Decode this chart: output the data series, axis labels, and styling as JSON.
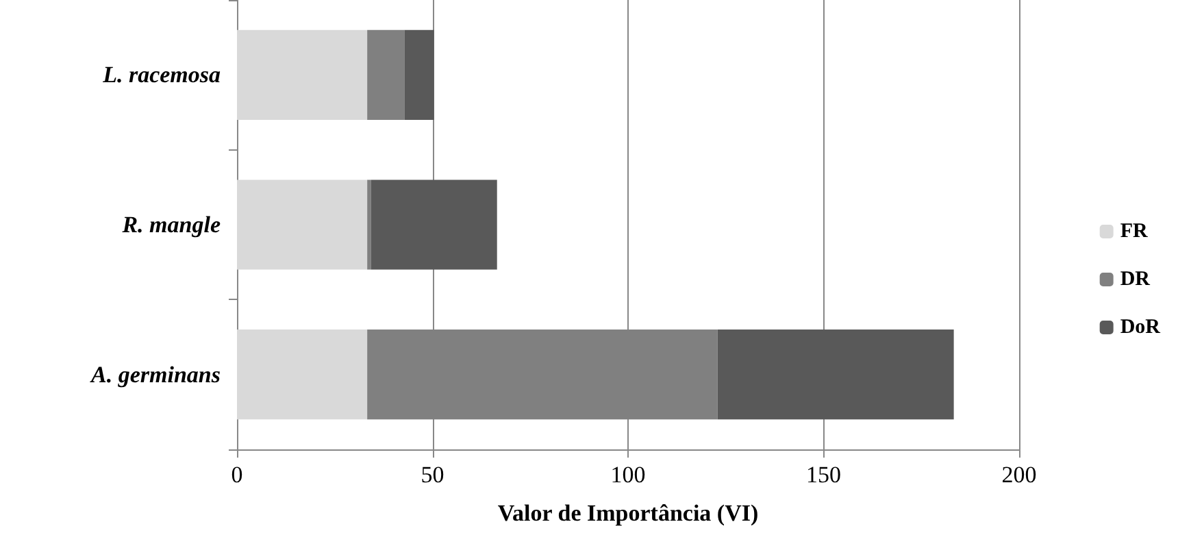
{
  "chart_data": {
    "type": "bar",
    "orientation": "horizontal",
    "stacked": true,
    "categories": [
      "L. racemosa",
      "R. mangle",
      "A. germinans"
    ],
    "series": [
      {
        "name": "FR",
        "color": "#d9d9d9",
        "values": [
          33.3,
          33.3,
          33.3
        ]
      },
      {
        "name": "DR",
        "color": "#808080",
        "values": [
          9.5,
          1,
          89.6
        ]
      },
      {
        "name": "DoR",
        "color": "#595959",
        "values": [
          7.6,
          32.2,
          60.4
        ]
      }
    ],
    "xlabel": "Valor de Importância (VI)",
    "xlim": [
      0,
      200
    ],
    "xticks": [
      0,
      50,
      100,
      150,
      200
    ],
    "grid": "x",
    "legend": "right"
  }
}
